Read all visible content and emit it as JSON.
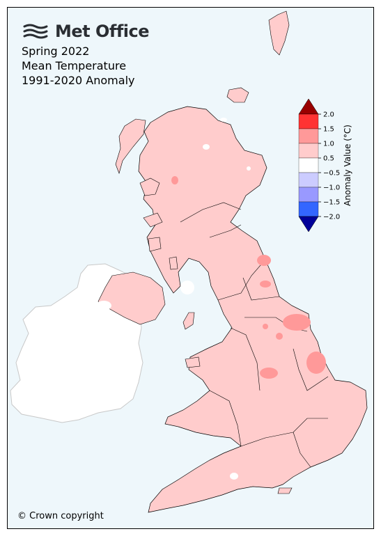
{
  "brand": {
    "name": "Met Office",
    "logo_icon": "met-office-wave-icon"
  },
  "title_lines": [
    "Spring 2022",
    "Mean Temperature",
    "1991-2020 Anomaly"
  ],
  "copyright": "© Crown copyright",
  "colorbar": {
    "title": "Anomaly Value (°C)",
    "tick_labels": [
      "2.0",
      "1.5",
      "1.0",
      "0.5",
      "−0.5",
      "−1.0",
      "−1.5",
      "−2.0"
    ],
    "bins": [
      {
        "range": [
          1.5,
          2.0
        ],
        "color": "#ff3333"
      },
      {
        "range": [
          1.0,
          1.5
        ],
        "color": "#ff9999"
      },
      {
        "range": [
          0.5,
          1.0
        ],
        "color": "#ffcccc"
      },
      {
        "range": [
          -0.5,
          0.5
        ],
        "color": "#ffffff"
      },
      {
        "range": [
          -1.0,
          -0.5
        ],
        "color": "#ccccff"
      },
      {
        "range": [
          -1.5,
          -1.0
        ],
        "color": "#9999ff"
      },
      {
        "range": [
          -2.0,
          -1.5
        ],
        "color": "#3366ff"
      }
    ],
    "over_color": "#990000",
    "under_color": "#000099"
  },
  "map": {
    "dominant_anomaly_bin": "0.5 to 1.0",
    "land_color": "#ffcccc",
    "sea_color": "#eef7fb",
    "ireland_color": "#ffffff",
    "warmer_patch_color": "#ff9999",
    "cooler_patch_color": "#ffffff"
  }
}
